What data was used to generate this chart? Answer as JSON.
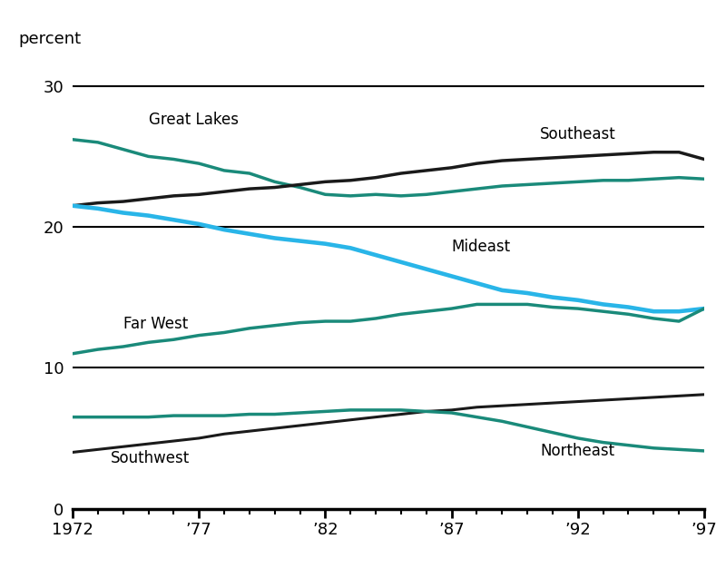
{
  "years": [
    1972,
    1973,
    1974,
    1975,
    1976,
    1977,
    1978,
    1979,
    1980,
    1981,
    1982,
    1983,
    1984,
    1985,
    1986,
    1987,
    1988,
    1989,
    1990,
    1991,
    1992,
    1993,
    1994,
    1995,
    1996,
    1997
  ],
  "great_lakes": [
    26.2,
    26.0,
    25.5,
    25.0,
    24.8,
    24.5,
    24.0,
    23.8,
    23.2,
    22.8,
    22.3,
    22.2,
    22.3,
    22.2,
    22.3,
    22.5,
    22.7,
    22.9,
    23.0,
    23.1,
    23.2,
    23.3,
    23.3,
    23.4,
    23.5,
    23.4
  ],
  "southeast": [
    21.5,
    21.7,
    21.8,
    22.0,
    22.2,
    22.3,
    22.5,
    22.7,
    22.8,
    23.0,
    23.2,
    23.3,
    23.5,
    23.8,
    24.0,
    24.2,
    24.5,
    24.7,
    24.8,
    24.9,
    25.0,
    25.1,
    25.2,
    25.3,
    25.3,
    24.8
  ],
  "mideast": [
    21.5,
    21.3,
    21.0,
    20.8,
    20.5,
    20.2,
    19.8,
    19.5,
    19.2,
    19.0,
    18.8,
    18.5,
    18.0,
    17.5,
    17.0,
    16.5,
    16.0,
    15.5,
    15.3,
    15.0,
    14.8,
    14.5,
    14.3,
    14.0,
    14.0,
    14.2
  ],
  "far_west": [
    11.0,
    11.3,
    11.5,
    11.8,
    12.0,
    12.3,
    12.5,
    12.8,
    13.0,
    13.2,
    13.3,
    13.3,
    13.5,
    13.8,
    14.0,
    14.2,
    14.5,
    14.5,
    14.5,
    14.3,
    14.2,
    14.0,
    13.8,
    13.5,
    13.3,
    14.2
  ],
  "southwest": [
    4.0,
    4.2,
    4.4,
    4.6,
    4.8,
    5.0,
    5.3,
    5.5,
    5.7,
    5.9,
    6.1,
    6.3,
    6.5,
    6.7,
    6.9,
    7.0,
    7.2,
    7.3,
    7.4,
    7.5,
    7.6,
    7.7,
    7.8,
    7.9,
    8.0,
    8.1
  ],
  "northeast": [
    6.5,
    6.5,
    6.5,
    6.5,
    6.6,
    6.6,
    6.6,
    6.7,
    6.7,
    6.8,
    6.9,
    7.0,
    7.0,
    7.0,
    6.9,
    6.8,
    6.5,
    6.2,
    5.8,
    5.4,
    5.0,
    4.7,
    4.5,
    4.3,
    4.2,
    4.1
  ],
  "color_teal": "#1a8a7a",
  "color_black": "#1a1a1a",
  "color_blue": "#29b5e8",
  "ylim": [
    0,
    32
  ],
  "yticks": [
    0,
    10,
    20,
    30
  ],
  "xticks": [
    1972,
    1977,
    1982,
    1987,
    1992,
    1997
  ],
  "xticklabels": [
    "1972",
    "’77",
    "’82",
    "’87",
    "’92",
    "’97"
  ],
  "linewidth": 2.5
}
